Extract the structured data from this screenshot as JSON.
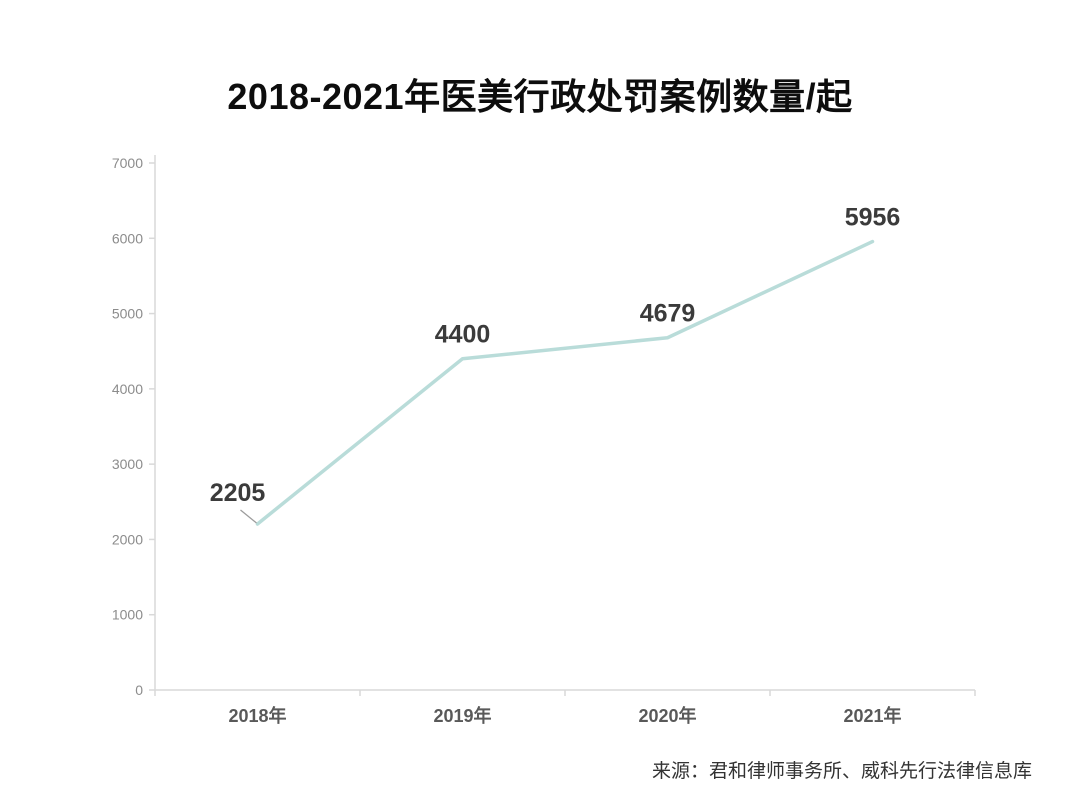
{
  "page": {
    "title": "2018-2021年医美行政处罚案例数量/起",
    "source": "来源：君和律师事务所、威科先行法律信息库"
  },
  "chart_data": {
    "type": "line",
    "title": "2018-2021年医美行政处罚案例数量/起",
    "categories": [
      "2018年",
      "2019年",
      "2020年",
      "2021年"
    ],
    "values": [
      2205,
      4400,
      4679,
      5956
    ],
    "data_labels": [
      "2205",
      "4400",
      "4679",
      "5956"
    ],
    "ylim": [
      0,
      7000
    ],
    "yticks": [
      0,
      1000,
      2000,
      3000,
      4000,
      5000,
      6000,
      7000
    ],
    "grid": false,
    "legend": false,
    "line_color": "#b9dcd9",
    "axis_color": "#d9d9d9",
    "leader_color": "#9c9c9c",
    "data_label_color": "#3b3b3b",
    "ytick_label_color": "#8c8c8c",
    "xtick_label_color": "#595959",
    "source": "来源：君和律师事务所、威科先行法律信息库"
  }
}
